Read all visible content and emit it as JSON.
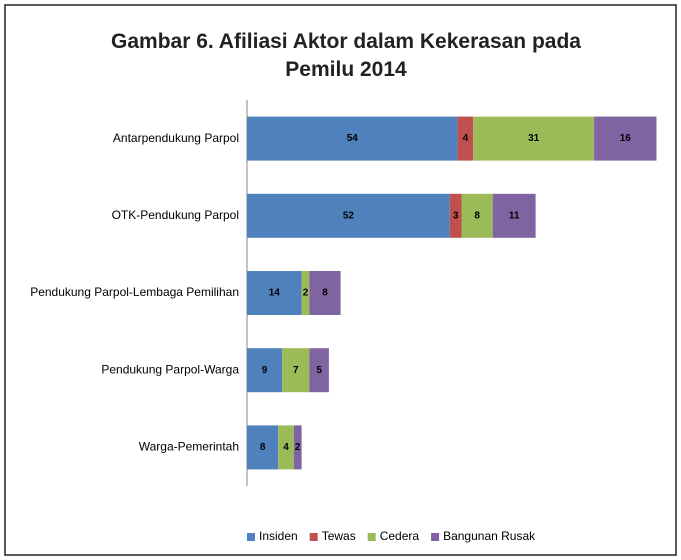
{
  "chart_data": {
    "type": "bar",
    "orientation": "horizontal",
    "stacked": true,
    "title": "Gambar 6. Afiliasi Aktor dalam Kekerasan pada Pemilu 2014",
    "categories": [
      "Antarpendukung Parpol",
      "OTK-Pendukung Parpol",
      "Pendukung Parpol-Lembaga Pemilihan",
      "Pendukung Parpol-Warga",
      "Warga-Pemerintah"
    ],
    "series": [
      {
        "name": "Insiden",
        "color": "#4f81bd",
        "values": [
          54,
          52,
          14,
          9,
          8
        ]
      },
      {
        "name": "Tewas",
        "color": "#c0504d",
        "values": [
          4,
          3,
          null,
          null,
          null
        ]
      },
      {
        "name": "Cedera",
        "color": "#9bbb59",
        "values": [
          31,
          8,
          2,
          7,
          4
        ]
      },
      {
        "name": "Bangunan Rusak",
        "color": "#8064a2",
        "values": [
          16,
          11,
          8,
          5,
          2
        ]
      }
    ],
    "legend": "bottom"
  }
}
